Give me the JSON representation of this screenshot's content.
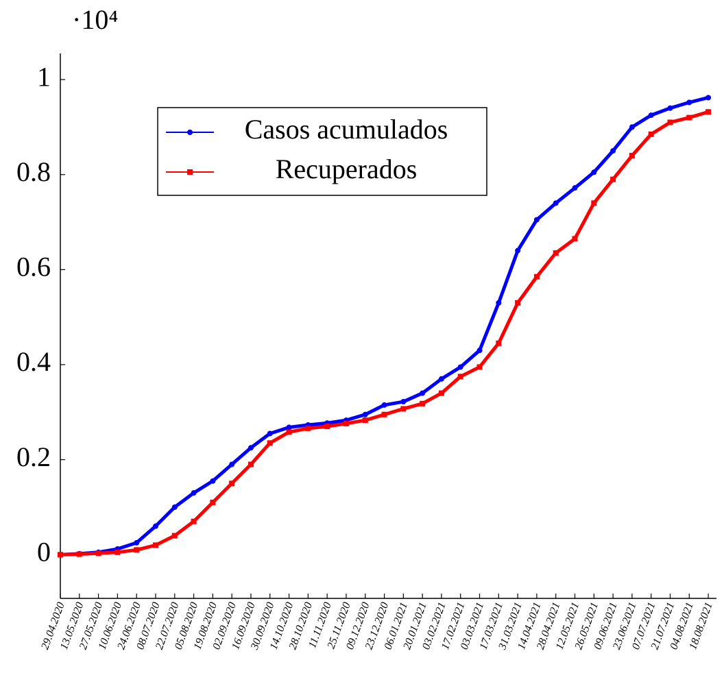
{
  "chart_data": {
    "type": "line",
    "y_scale_label": "·10⁴",
    "x": [
      "29.04.2020",
      "13.05.2020",
      "27.05.2020",
      "10.06.2020",
      "24.06.2020",
      "08.07.2020",
      "22.07.2020",
      "05.08.2020",
      "19.08.2020",
      "02.09.2020",
      "16.09.2020",
      "30.09.2020",
      "14.10.2020",
      "28.10.2020",
      "11.11.2020",
      "25.11.2020",
      "09.12.2020",
      "23.12.2020",
      "06.01.2021",
      "20.01.2021",
      "03.02.2021",
      "17.02.2021",
      "03.03.2021",
      "17.03.2021",
      "31.03.2021",
      "14.04.2021",
      "28.04.2021",
      "12.05.2021",
      "26.05.2021",
      "09.06.2021",
      "23.06.2021",
      "07.07.2021",
      "21.07.2021",
      "04.08.2021",
      "18.08.2021"
    ],
    "series": [
      {
        "name": "Casos acumulados",
        "color": "#0000ff",
        "marker": "circle",
        "values": [
          0,
          0.002,
          0.005,
          0.012,
          0.025,
          0.06,
          0.1,
          0.13,
          0.155,
          0.19,
          0.225,
          0.255,
          0.268,
          0.273,
          0.277,
          0.283,
          0.295,
          0.315,
          0.322,
          0.34,
          0.37,
          0.395,
          0.43,
          0.53,
          0.64,
          0.705,
          0.74,
          0.772,
          0.805,
          0.85,
          0.9,
          0.925,
          0.94,
          0.952,
          0.962
        ]
      },
      {
        "name": "Recuperados",
        "color": "#ff0000",
        "marker": "square",
        "values": [
          0,
          0.001,
          0.003,
          0.005,
          0.01,
          0.02,
          0.04,
          0.07,
          0.11,
          0.15,
          0.19,
          0.235,
          0.258,
          0.266,
          0.27,
          0.276,
          0.283,
          0.295,
          0.307,
          0.318,
          0.34,
          0.375,
          0.395,
          0.445,
          0.53,
          0.585,
          0.635,
          0.665,
          0.74,
          0.79,
          0.84,
          0.885,
          0.91,
          0.92,
          0.932
        ]
      }
    ],
    "xlim": [
      "29.04.2020",
      "24.08.2021"
    ],
    "xticks": [
      "29.04.2020",
      "13.05.2020",
      "27.05.2020",
      "10.06.2020",
      "24.06.2020",
      "08.07.2020",
      "22.07.2020",
      "05.08.2020",
      "19.08.2020",
      "02.09.2020",
      "16.09.2020",
      "30.09.2020",
      "14.10.2020",
      "28.10.2020",
      "11.11.2020",
      "25.11.2020",
      "09.12.2020",
      "23.12.2020",
      "06.01.2021",
      "20.01.2021",
      "03.02.2021",
      "17.02.2021",
      "03.03.2021",
      "17.03.2021",
      "31.03.2021",
      "14.04.2021",
      "28.04.2021",
      "12.05.2021",
      "26.05.2021",
      "09.06.2021",
      "23.06.2021",
      "07.07.2021",
      "21.07.2021",
      "04.08.2021",
      "18.08.2021"
    ],
    "ylim": [
      -0.092,
      1.055
    ],
    "yticks": [
      0,
      0.2,
      0.4,
      0.6,
      0.8,
      1
    ],
    "legend": "top-left"
  }
}
